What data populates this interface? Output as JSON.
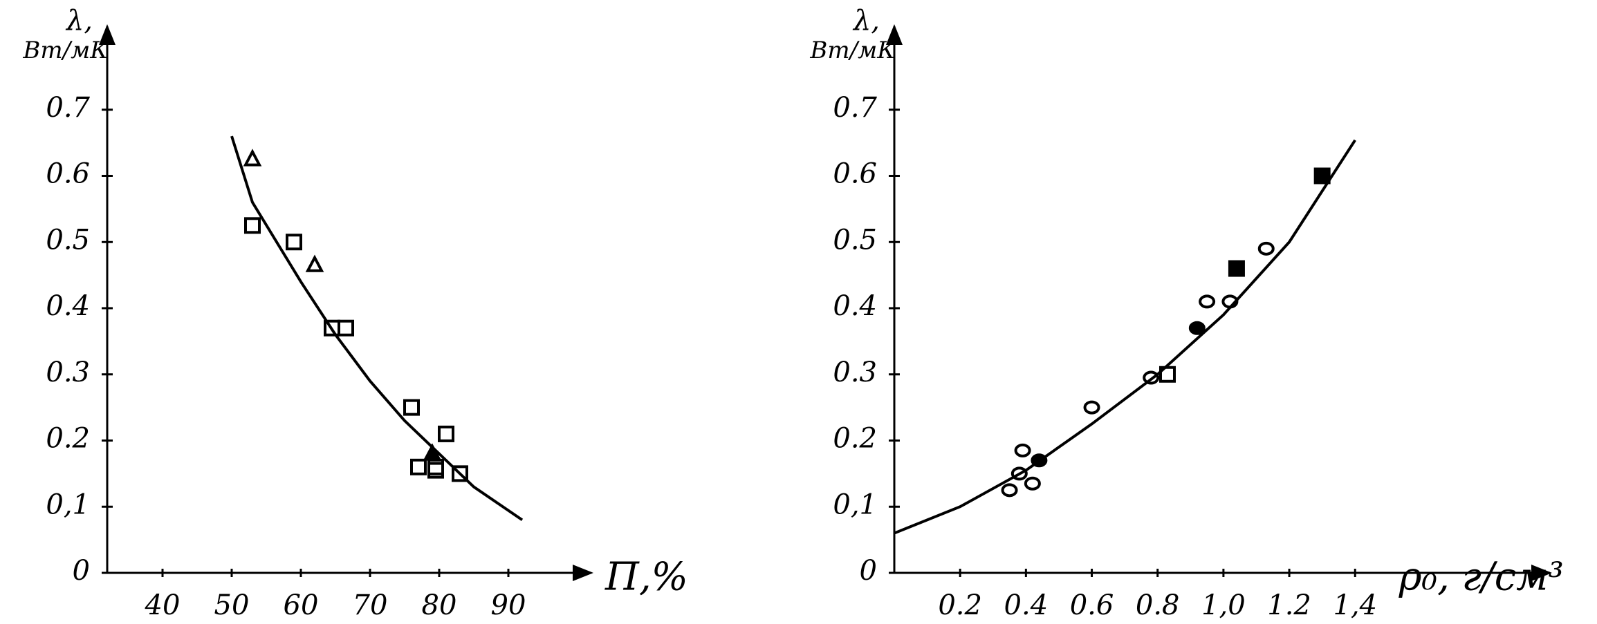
{
  "chart_data": [
    {
      "type": "scatter",
      "y_label": "λ,",
      "y_unit": "Вт/мК",
      "x_label": "П,%",
      "xlim": [
        32,
        100
      ],
      "ylim": [
        0,
        0.8
      ],
      "xticks": [
        40,
        50,
        60,
        70,
        80,
        90
      ],
      "yticks": [
        0,
        {
          "value": 0.1,
          "label": "0,1"
        },
        0.2,
        0.3,
        0.4,
        0.5,
        0.6,
        0.7
      ],
      "series": [
        {
          "marker": "triangle",
          "filled": false,
          "color": "#000000",
          "x": [
            53,
            62
          ],
          "values": [
            0.625,
            0.465
          ]
        },
        {
          "marker": "square",
          "filled": false,
          "color": "#000000",
          "x": [
            53,
            59,
            64.5,
            66.5,
            76,
            77,
            79.5,
            79.5,
            81,
            83
          ],
          "values": [
            0.525,
            0.5,
            0.37,
            0.37,
            0.25,
            0.16,
            0.16,
            0.155,
            0.21,
            0.15
          ]
        },
        {
          "marker": "triangle",
          "filled": true,
          "color": "#000000",
          "x": [
            79
          ],
          "values": [
            0.18
          ]
        },
        {
          "marker": "line",
          "color": "#000000",
          "x": [
            50,
            53,
            60,
            65,
            70,
            75,
            80,
            85,
            92
          ],
          "values": [
            0.66,
            0.56,
            0.44,
            0.36,
            0.29,
            0.23,
            0.18,
            0.13,
            0.08
          ]
        }
      ]
    },
    {
      "type": "scatter",
      "y_label": "λ,",
      "y_unit": "Вт/мК",
      "x_label": "ρ₀, г/см³",
      "xlim": [
        0,
        1.95
      ],
      "ylim": [
        0,
        0.8
      ],
      "xticks": [
        0.2,
        0.4,
        0.6,
        0.8,
        {
          "value": 1.0,
          "label": "1,0"
        },
        1.2,
        {
          "value": 1.4,
          "label": "1,4"
        }
      ],
      "yticks": [
        0,
        {
          "value": 0.1,
          "label": "0,1"
        },
        0.2,
        0.3,
        0.4,
        0.5,
        0.6,
        0.7
      ],
      "series": [
        {
          "marker": "circle",
          "filled": false,
          "color": "#000000",
          "x": [
            0.35,
            0.38,
            0.39,
            0.42,
            0.6,
            0.78,
            0.95,
            1.02,
            1.13
          ],
          "values": [
            0.125,
            0.15,
            0.185,
            0.135,
            0.25,
            0.295,
            0.41,
            0.41,
            0.49
          ]
        },
        {
          "marker": "circle",
          "filled": true,
          "color": "#000000",
          "x": [
            0.44,
            0.92
          ],
          "values": [
            0.17,
            0.37
          ]
        },
        {
          "marker": "square",
          "filled": false,
          "color": "#000000",
          "x": [
            0.83
          ],
          "values": [
            0.3
          ]
        },
        {
          "marker": "square",
          "filled": true,
          "color": "#000000",
          "x": [
            1.04,
            1.3
          ],
          "values": [
            0.46,
            0.6
          ]
        },
        {
          "marker": "line",
          "color": "#000000",
          "x": [
            0,
            0.2,
            0.4,
            0.6,
            0.8,
            1.0,
            1.2,
            1.4
          ],
          "values": [
            0.06,
            0.1,
            0.155,
            0.225,
            0.3,
            0.39,
            0.5,
            0.654
          ]
        }
      ]
    }
  ]
}
